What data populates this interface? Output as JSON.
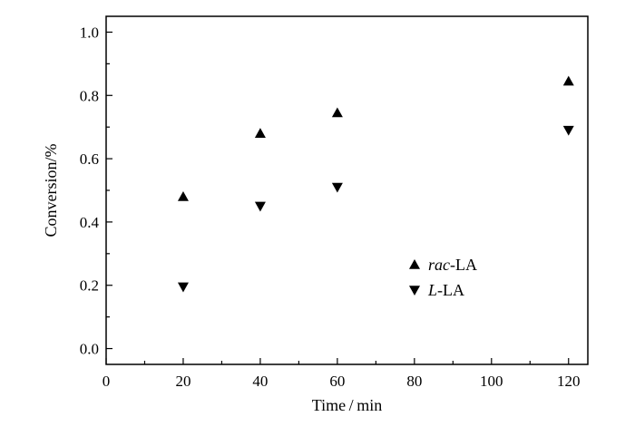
{
  "chart_data": {
    "type": "scatter",
    "xlabel": "Time / min",
    "ylabel": "Conversion/%",
    "xlim": [
      0,
      125
    ],
    "ylim": [
      -0.05,
      1.05
    ],
    "xticks": [
      0,
      20,
      40,
      60,
      80,
      100,
      120
    ],
    "xticks_minor": [
      10,
      30,
      50,
      70,
      90,
      110
    ],
    "yticks": [
      0.0,
      0.2,
      0.4,
      0.6,
      0.8,
      1.0
    ],
    "yticks_minor": [
      0.1,
      0.3,
      0.5,
      0.7,
      0.9
    ],
    "grid": false,
    "legend_position": "center-right",
    "series": [
      {
        "name_italic": "rac",
        "name_rest": "-LA",
        "marker": "triangle-up",
        "color": "#000000",
        "x": [
          20,
          40,
          60,
          120
        ],
        "y": [
          0.48,
          0.68,
          0.745,
          0.845
        ]
      },
      {
        "name_italic": "L",
        "name_rest": "-LA",
        "marker": "triangle-down",
        "color": "#000000",
        "x": [
          20,
          40,
          60,
          120
        ],
        "y": [
          0.195,
          0.45,
          0.51,
          0.69
        ]
      }
    ]
  }
}
